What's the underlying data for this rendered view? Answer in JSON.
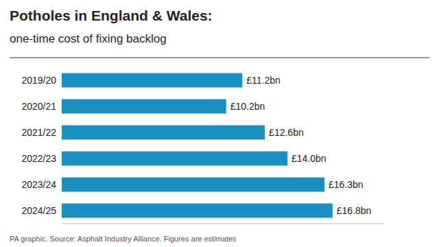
{
  "chart_data": {
    "type": "bar",
    "orientation": "horizontal",
    "title": "Potholes in England & Wales:",
    "subtitle": "one-time cost of fixing backlog",
    "categories": [
      "2019/20",
      "2020/21",
      "2021/22",
      "2022/23",
      "2023/24",
      "2024/25"
    ],
    "values": [
      11.2,
      10.2,
      12.6,
      14.0,
      16.3,
      16.8
    ],
    "value_labels": [
      "£11.2bn",
      "£10.2bn",
      "£12.6bn",
      "£14.0bn",
      "£16.3bn",
      "£16.8bn"
    ],
    "data_labels": true,
    "color": "#1a8fc1",
    "xlim": [
      0,
      20
    ],
    "tick_labels": "y",
    "grid": false,
    "footnote": "PA graphic. Source: Asphalt Industry Alliance. Figures are estimates"
  }
}
